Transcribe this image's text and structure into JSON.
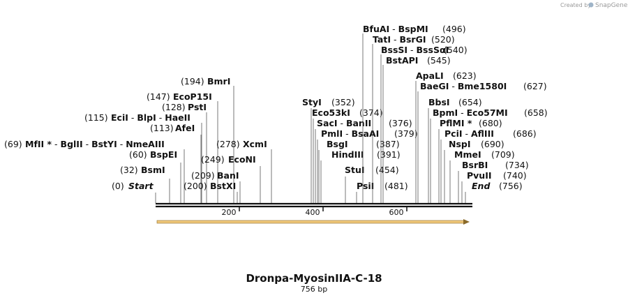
{
  "credit": {
    "prefix": "Created by",
    "brand": "SnapGene"
  },
  "map": {
    "title": "Dronpa-MyosinIIA-C-18",
    "length_label": "756 bp",
    "length": 756,
    "ruler_ticks": [
      "200",
      "400",
      "600"
    ],
    "feature_color": "#f0c87a",
    "sites": [
      {
        "pos": 0,
        "pos_text": "(0)",
        "names": [
          "Start"
        ],
        "italic": true
      },
      {
        "pos": 32,
        "pos_text": "(32)",
        "names": [
          "BsmI"
        ]
      },
      {
        "pos": 60,
        "pos_text": "(60)",
        "names": [
          "BspEI"
        ]
      },
      {
        "pos": 69,
        "pos_text": "(69)",
        "names": [
          "MfII *",
          "BglII",
          "BstYI",
          "NmeAIII"
        ]
      },
      {
        "pos": 113,
        "pos_text": "(113)",
        "names": [
          "AfeI"
        ]
      },
      {
        "pos": 115,
        "pos_text": "(115)",
        "names": [
          "EciI",
          "BlpI",
          "HaeII"
        ]
      },
      {
        "pos": 128,
        "pos_text": "(128)",
        "names": [
          "PstI"
        ]
      },
      {
        "pos": 147,
        "pos_text": "(147)",
        "names": [
          "EcoP15I"
        ]
      },
      {
        "pos": 194,
        "pos_text": "(194)",
        "names": [
          "BmrI"
        ]
      },
      {
        "pos": 200,
        "pos_text": "(200)",
        "names": [
          "BstXI"
        ]
      },
      {
        "pos": 209,
        "pos_text": "(209)",
        "names": [
          "BanI"
        ]
      },
      {
        "pos": 249,
        "pos_text": "(249)",
        "names": [
          "EcoNI"
        ]
      },
      {
        "pos": 278,
        "pos_text": "(278)",
        "names": [
          "XcmI"
        ]
      },
      {
        "pos": 352,
        "pos_text": "(352)",
        "names": [
          "StyI"
        ]
      },
      {
        "pos": 374,
        "pos_text": "(374)",
        "names": [
          "Eco53kI"
        ]
      },
      {
        "pos": 376,
        "pos_text": "(376)",
        "names": [
          "SacI",
          "BanII"
        ]
      },
      {
        "pos": 379,
        "pos_text": "(379)",
        "names": [
          "PmlI",
          "BsaAI"
        ]
      },
      {
        "pos": 387,
        "pos_text": "(387)",
        "names": [
          "BsgI"
        ]
      },
      {
        "pos": 391,
        "pos_text": "(391)",
        "names": [
          "HindIII"
        ]
      },
      {
        "pos": 454,
        "pos_text": "(454)",
        "names": [
          "StuI"
        ]
      },
      {
        "pos": 481,
        "pos_text": "(481)",
        "names": [
          "PsiI"
        ]
      },
      {
        "pos": 496,
        "pos_text": "(496)",
        "names": [
          "BfuAI",
          "BspMI"
        ]
      },
      {
        "pos": 520,
        "pos_text": "(520)",
        "names": [
          "TatI",
          "BsrGI"
        ]
      },
      {
        "pos": 540,
        "pos_text": "(540)",
        "names": [
          "BssSI",
          "BssSαI"
        ]
      },
      {
        "pos": 545,
        "pos_text": "(545)",
        "names": [
          "BstAPI"
        ]
      },
      {
        "pos": 623,
        "pos_text": "(623)",
        "names": [
          "ApaLI"
        ]
      },
      {
        "pos": 627,
        "pos_text": "(627)",
        "names": [
          "BaeGI",
          "Bme1580I"
        ]
      },
      {
        "pos": 654,
        "pos_text": "(654)",
        "names": [
          "BbsI"
        ]
      },
      {
        "pos": 658,
        "pos_text": "(658)",
        "names": [
          "BpmI",
          "Eco57MI"
        ]
      },
      {
        "pos": 680,
        "pos_text": "(680)",
        "names": [
          "PflMI *"
        ]
      },
      {
        "pos": 686,
        "pos_text": "(686)",
        "names": [
          "PciI",
          "AflIII"
        ]
      },
      {
        "pos": 690,
        "pos_text": "(690)",
        "names": [
          "NspI"
        ]
      },
      {
        "pos": 709,
        "pos_text": "(709)",
        "names": [
          "MmeI"
        ]
      },
      {
        "pos": 734,
        "pos_text": "(734)",
        "names": [
          "BsrBI"
        ]
      },
      {
        "pos": 740,
        "pos_text": "(740)",
        "names": [
          "PvuII"
        ]
      },
      {
        "pos": 756,
        "pos_text": "(756)",
        "names": [
          "End"
        ],
        "italic": true
      }
    ]
  }
}
